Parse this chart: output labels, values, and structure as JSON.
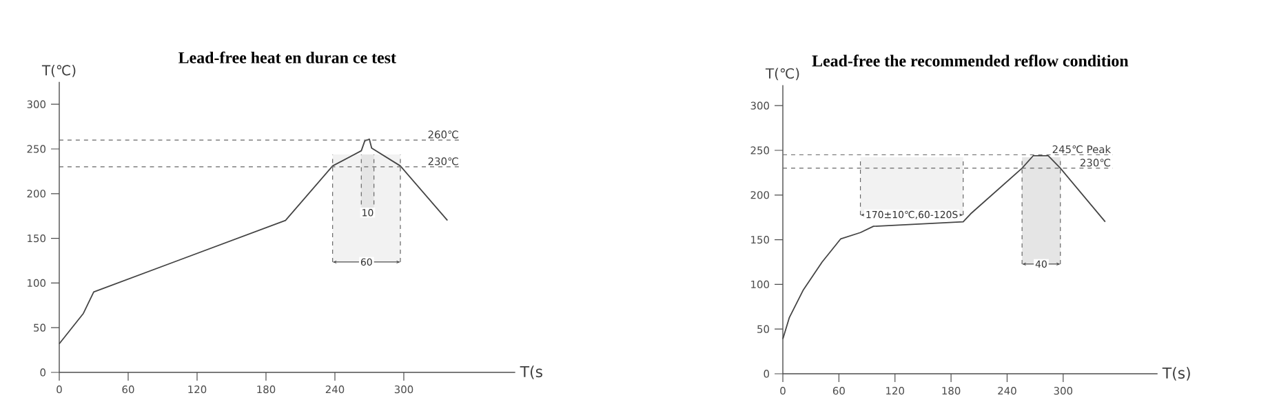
{
  "chart_data": [
    {
      "type": "line",
      "title": "Lead-free heat en duran ce test",
      "xlabel": "T(s",
      "ylabel": "T(℃)",
      "xlim": [
        0,
        397
      ],
      "ylim": [
        0,
        325
      ],
      "xticks": [
        0,
        60,
        120,
        180,
        240,
        300
      ],
      "yticks": [
        0,
        50,
        100,
        150,
        200,
        250,
        300
      ],
      "series": [
        {
          "color": "#444444",
          "x": [
            0,
            21,
            30,
            197,
            238,
            263,
            266,
            270,
            272,
            297,
            338
          ],
          "values": [
            32,
            66,
            90,
            170,
            231,
            248,
            259,
            261,
            251,
            231,
            170
          ]
        }
      ],
      "ref_lines": [
        {
          "axis": "y",
          "value": 260,
          "label": "260℃",
          "line_style": "dashed"
        },
        {
          "axis": "y",
          "value": 230,
          "label": "230℃",
          "line_style": "dashed"
        }
      ],
      "bands": [
        {
          "axis": "x",
          "from": 263,
          "to": 274,
          "label": "10"
        },
        {
          "axis": "x",
          "from": 238,
          "to": 297,
          "label": "60"
        }
      ]
    },
    {
      "type": "line",
      "title": "Lead-free the recommended reflow condition",
      "xlabel": "T(s)",
      "ylabel": "T(℃)",
      "xlim": [
        0,
        401
      ],
      "ylim": [
        0,
        323
      ],
      "xticks": [
        0,
        60,
        120,
        180,
        240,
        300
      ],
      "yticks": [
        0,
        50,
        100,
        150,
        200,
        250,
        300
      ],
      "series": [
        {
          "color": "#444444",
          "x": [
            0,
            7,
            22,
            42,
            62,
            83,
            97,
            193,
            201,
            256,
            268,
            284,
            297,
            345
          ],
          "values": [
            39,
            63,
            94,
            125,
            151,
            158,
            165,
            170,
            179,
            230,
            244,
            244,
            230,
            170
          ]
        }
      ],
      "ref_lines": [
        {
          "axis": "y",
          "value": 245,
          "label": "245℃ Peak",
          "line_style": "dashed"
        },
        {
          "axis": "y",
          "value": 230,
          "label": "230℃",
          "line_style": "dashed"
        }
      ],
      "bands": [
        {
          "axis": "x",
          "from": 83,
          "to": 193,
          "label": "170±10℃,60-120S"
        },
        {
          "axis": "x",
          "from": 256,
          "to": 297,
          "label": "40"
        }
      ]
    }
  ]
}
